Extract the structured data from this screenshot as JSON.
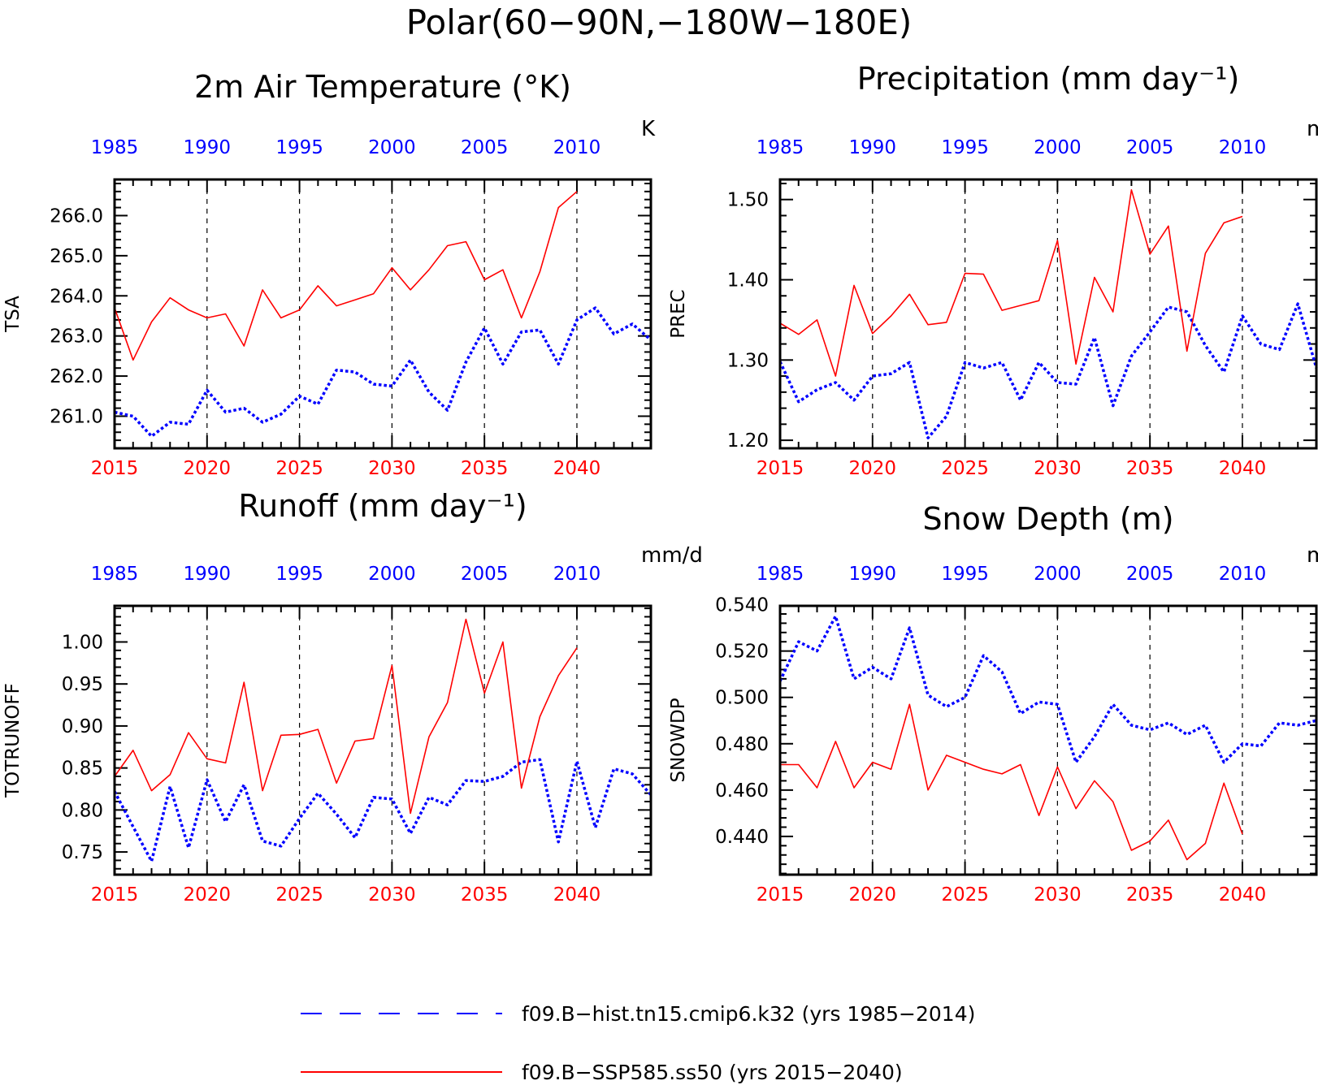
{
  "figure_title": "Polar(60−90N,−180W−180E)",
  "colors": {
    "hist": "#0000ff",
    "ssp": "#ff0000",
    "axis": "#000000"
  },
  "legend": [
    {
      "label": "f09.B−hist.tn15.cmip6.k32 (yrs 1985−2014)",
      "color": "#0000ff",
      "style": "dashed"
    },
    {
      "label": "f09.B−SSP585.ss50 (yrs 2015−2040)",
      "color": "#ff0000",
      "style": "solid"
    }
  ],
  "chart_data": [
    {
      "type": "line",
      "title": "2m Air Temperature (°K)",
      "ylabel": "TSA",
      "units": "K",
      "ylim": [
        260.2,
        266.9
      ],
      "yticks": [
        261.0,
        262.0,
        263.0,
        264.0,
        265.0,
        266.0
      ],
      "ytick_labels": [
        "261.0",
        "262.0",
        "263.0",
        "264.0",
        "265.0",
        "266.0"
      ],
      "x_bottom": {
        "label_color": "#ff0000",
        "ticks": [
          2015,
          2020,
          2025,
          2030,
          2035,
          2040
        ],
        "range": [
          2015,
          2044
        ]
      },
      "x_top": {
        "label_color": "#0000ff",
        "ticks": [
          1985,
          1990,
          1995,
          2000,
          2005,
          2010
        ],
        "range": [
          1985,
          2014
        ]
      },
      "series": [
        {
          "name": "f09.B−hist.tn15.cmip6.k32",
          "axis": "top",
          "color": "#0000ff",
          "style": "dotted",
          "x": [
            1985,
            1986,
            1987,
            1988,
            1989,
            1990,
            1991,
            1992,
            1993,
            1994,
            1995,
            1996,
            1997,
            1998,
            1999,
            2000,
            2001,
            2002,
            2003,
            2004,
            2005,
            2006,
            2007,
            2008,
            2009,
            2010,
            2011,
            2012,
            2013,
            2014
          ],
          "values": [
            261.1,
            261.0,
            260.5,
            260.85,
            260.8,
            261.65,
            261.1,
            261.2,
            260.85,
            261.05,
            261.5,
            261.3,
            262.15,
            262.1,
            261.8,
            261.75,
            262.4,
            261.6,
            261.15,
            262.35,
            263.2,
            262.3,
            263.1,
            263.15,
            262.3,
            263.4,
            263.7,
            263.05,
            263.3,
            262.9
          ]
        },
        {
          "name": "f09.B−SSP585.ss50",
          "axis": "bottom",
          "color": "#ff0000",
          "style": "solid",
          "x": [
            2015,
            2016,
            2017,
            2018,
            2019,
            2020,
            2021,
            2022,
            2023,
            2024,
            2025,
            2026,
            2027,
            2028,
            2029,
            2030,
            2031,
            2032,
            2033,
            2034,
            2035,
            2036,
            2037,
            2038,
            2039,
            2040
          ],
          "values": [
            263.7,
            262.4,
            263.35,
            263.95,
            263.65,
            263.45,
            263.55,
            262.75,
            264.15,
            263.45,
            263.65,
            264.25,
            263.75,
            263.9,
            264.05,
            264.7,
            264.15,
            264.65,
            265.25,
            265.35,
            264.4,
            264.65,
            263.45,
            264.6,
            266.2,
            266.6
          ]
        }
      ]
    },
    {
      "type": "line",
      "title": "Precipitation (mm day⁻¹)",
      "ylabel": "PREC",
      "units": "mm/d",
      "ylim": [
        1.19,
        1.525
      ],
      "yticks": [
        1.2,
        1.3,
        1.4,
        1.5
      ],
      "ytick_labels": [
        "1.20",
        "1.30",
        "1.40",
        "1.50"
      ],
      "x_bottom": {
        "label_color": "#ff0000",
        "ticks": [
          2015,
          2020,
          2025,
          2030,
          2035,
          2040
        ],
        "range": [
          2015,
          2044
        ]
      },
      "x_top": {
        "label_color": "#0000ff",
        "ticks": [
          1985,
          1990,
          1995,
          2000,
          2005,
          2010
        ],
        "range": [
          1985,
          2014
        ]
      },
      "series": [
        {
          "name": "f09.B−hist.tn15.cmip6.k32",
          "axis": "top",
          "color": "#0000ff",
          "style": "dotted",
          "x": [
            1985,
            1986,
            1987,
            1988,
            1989,
            1990,
            1991,
            1992,
            1993,
            1994,
            1995,
            1996,
            1997,
            1998,
            1999,
            2000,
            2001,
            2002,
            2003,
            2004,
            2005,
            2006,
            2007,
            2008,
            2009,
            2010,
            2011,
            2012,
            2013,
            2014
          ],
          "values": [
            1.298,
            1.248,
            1.263,
            1.272,
            1.25,
            1.28,
            1.283,
            1.297,
            1.203,
            1.23,
            1.297,
            1.29,
            1.297,
            1.25,
            1.297,
            1.272,
            1.27,
            1.328,
            1.243,
            1.305,
            1.335,
            1.366,
            1.36,
            1.318,
            1.285,
            1.355,
            1.32,
            1.313,
            1.37,
            1.29
          ]
        },
        {
          "name": "f09.B−SSP585.ss50",
          "axis": "bottom",
          "color": "#ff0000",
          "style": "solid",
          "x": [
            2015,
            2016,
            2017,
            2018,
            2019,
            2020,
            2021,
            2022,
            2023,
            2024,
            2025,
            2026,
            2027,
            2028,
            2029,
            2030,
            2031,
            2032,
            2033,
            2034,
            2035,
            2036,
            2037,
            2038,
            2039,
            2040
          ],
          "values": [
            1.346,
            1.332,
            1.35,
            1.28,
            1.393,
            1.333,
            1.355,
            1.382,
            1.344,
            1.347,
            1.408,
            1.407,
            1.362,
            1.368,
            1.374,
            1.449,
            1.295,
            1.403,
            1.36,
            1.512,
            1.432,
            1.467,
            1.311,
            1.433,
            1.471,
            1.479
          ]
        }
      ]
    },
    {
      "type": "line",
      "title": "Runoff (mm day⁻¹)",
      "ylabel": "TOTRUNOFF",
      "units": "mm/d",
      "ylim": [
        0.723,
        1.043
      ],
      "yticks": [
        0.75,
        0.8,
        0.85,
        0.9,
        0.95,
        1.0
      ],
      "ytick_labels": [
        "0.75",
        "0.80",
        "0.85",
        "0.90",
        "0.95",
        "1.00"
      ],
      "x_bottom": {
        "label_color": "#ff0000",
        "ticks": [
          2015,
          2020,
          2025,
          2030,
          2035,
          2040
        ],
        "range": [
          2015,
          2044
        ]
      },
      "x_top": {
        "label_color": "#0000ff",
        "ticks": [
          1985,
          1990,
          1995,
          2000,
          2005,
          2010
        ],
        "range": [
          1985,
          2014
        ]
      },
      "series": [
        {
          "name": "f09.B−hist.tn15.cmip6.k32",
          "axis": "top",
          "color": "#0000ff",
          "style": "dotted",
          "x": [
            1985,
            1986,
            1987,
            1988,
            1989,
            1990,
            1991,
            1992,
            1993,
            1994,
            1995,
            1996,
            1997,
            1998,
            1999,
            2000,
            2001,
            2002,
            2003,
            2004,
            2005,
            2006,
            2007,
            2008,
            2009,
            2010,
            2011,
            2012,
            2013,
            2014
          ],
          "values": [
            0.822,
            0.78,
            0.739,
            0.828,
            0.755,
            0.836,
            0.786,
            0.83,
            0.763,
            0.757,
            0.79,
            0.82,
            0.795,
            0.767,
            0.815,
            0.813,
            0.772,
            0.815,
            0.806,
            0.835,
            0.834,
            0.84,
            0.857,
            0.86,
            0.762,
            0.858,
            0.779,
            0.849,
            0.843,
            0.818
          ]
        },
        {
          "name": "f09.B−SSP585.ss50",
          "axis": "bottom",
          "color": "#ff0000",
          "style": "solid",
          "x": [
            2015,
            2016,
            2017,
            2018,
            2019,
            2020,
            2021,
            2022,
            2023,
            2024,
            2025,
            2026,
            2027,
            2028,
            2029,
            2030,
            2031,
            2032,
            2033,
            2034,
            2035,
            2036,
            2037,
            2038,
            2039,
            2040
          ],
          "values": [
            0.84,
            0.871,
            0.823,
            0.842,
            0.892,
            0.861,
            0.856,
            0.952,
            0.823,
            0.889,
            0.89,
            0.896,
            0.832,
            0.882,
            0.885,
            0.972,
            0.796,
            0.887,
            0.928,
            1.027,
            0.939,
            1.0,
            0.826,
            0.911,
            0.96,
            0.993
          ]
        }
      ]
    },
    {
      "type": "line",
      "title": "Snow Depth (m)",
      "ylabel": "SNOWDP",
      "units": "m",
      "ylim": [
        0.4235,
        0.5395
      ],
      "yticks": [
        0.44,
        0.46,
        0.48,
        0.5,
        0.52,
        0.54
      ],
      "ytick_labels": [
        "0.440",
        "0.460",
        "0.480",
        "0.500",
        "0.520",
        "0.540"
      ],
      "x_bottom": {
        "label_color": "#ff0000",
        "ticks": [
          2015,
          2020,
          2025,
          2030,
          2035,
          2040
        ],
        "range": [
          2015,
          2044
        ]
      },
      "x_top": {
        "label_color": "#0000ff",
        "ticks": [
          1985,
          1990,
          1995,
          2000,
          2005,
          2010
        ],
        "range": [
          1985,
          2014
        ]
      },
      "series": [
        {
          "name": "f09.B−hist.tn15.cmip6.k32",
          "axis": "top",
          "color": "#0000ff",
          "style": "dotted",
          "x": [
            1985,
            1986,
            1987,
            1988,
            1989,
            1990,
            1991,
            1992,
            1993,
            1994,
            1995,
            1996,
            1997,
            1998,
            1999,
            2000,
            2001,
            2002,
            2003,
            2004,
            2005,
            2006,
            2007,
            2008,
            2009,
            2010,
            2011,
            2012,
            2013,
            2014
          ],
          "values": [
            0.507,
            0.524,
            0.52,
            0.535,
            0.508,
            0.513,
            0.508,
            0.53,
            0.501,
            0.496,
            0.5,
            0.518,
            0.511,
            0.493,
            0.498,
            0.497,
            0.472,
            0.483,
            0.497,
            0.488,
            0.486,
            0.489,
            0.484,
            0.488,
            0.472,
            0.48,
            0.479,
            0.489,
            0.488,
            0.49
          ]
        },
        {
          "name": "f09.B−SSP585.ss50",
          "axis": "bottom",
          "color": "#ff0000",
          "style": "solid",
          "x": [
            2015,
            2016,
            2017,
            2018,
            2019,
            2020,
            2021,
            2022,
            2023,
            2024,
            2025,
            2026,
            2027,
            2028,
            2029,
            2030,
            2031,
            2032,
            2033,
            2034,
            2035,
            2036,
            2037,
            2038,
            2039,
            2040
          ],
          "values": [
            0.471,
            0.471,
            0.461,
            0.481,
            0.461,
            0.472,
            0.469,
            0.497,
            0.46,
            0.475,
            0.472,
            0.469,
            0.467,
            0.471,
            0.449,
            0.47,
            0.452,
            0.464,
            0.455,
            0.434,
            0.438,
            0.447,
            0.43,
            0.437,
            0.463,
            0.441
          ]
        }
      ]
    }
  ]
}
